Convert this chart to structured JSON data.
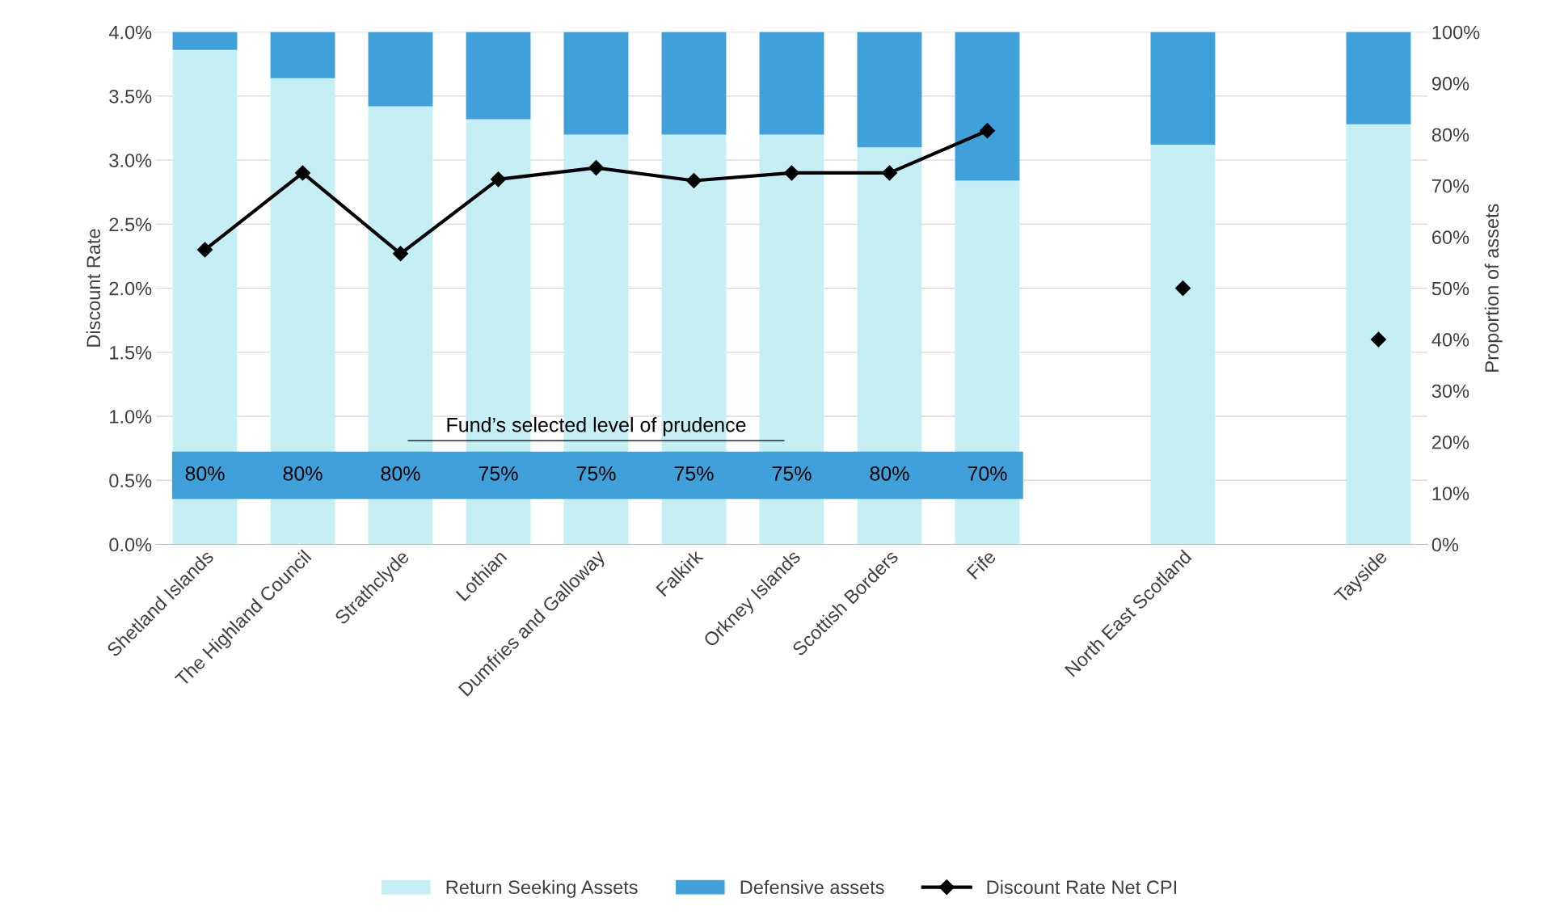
{
  "chart_data": {
    "type": "bar",
    "stacked": true,
    "categories": [
      "Shetland Islands",
      "The Highland Council",
      "Strathclyde",
      "Lothian",
      "Dumfries and Galloway",
      "Falkirk",
      "Orkney Islands",
      "Scottish Borders",
      "Fife",
      null,
      "North East Scotland",
      null,
      "Tayside"
    ],
    "series": [
      {
        "name": "Return Seeking Assets",
        "axis": "y2",
        "color": "#c5eef5",
        "values": [
          96.5,
          91,
          85.5,
          83,
          80,
          80,
          80,
          77.5,
          71,
          null,
          78,
          null,
          82
        ]
      },
      {
        "name": "Defensive assets",
        "axis": "y2",
        "color": "#40a0da",
        "values": [
          3.5,
          9,
          14.5,
          17,
          20,
          20,
          20,
          22.5,
          29,
          null,
          22,
          null,
          18
        ]
      },
      {
        "name": "Discount Rate Net CPI",
        "type": "line",
        "axis": "y",
        "color": "#000000",
        "marker": "diamond",
        "line_style": "solid",
        "values": [
          2.3,
          2.9,
          2.27,
          2.85,
          2.94,
          2.84,
          2.9,
          2.9,
          3.23,
          null,
          2.0,
          null,
          1.6
        ]
      }
    ],
    "ylabel": "Discount Rate",
    "y2label": "Proportion of assets",
    "ylim": [
      0,
      4
    ],
    "yticks": [
      {
        "value": 0,
        "label": "0.0%"
      },
      {
        "value": 0.5,
        "label": "0.5%"
      },
      {
        "value": 1,
        "label": "1.0%"
      },
      {
        "value": 1.5,
        "label": "1.5%"
      },
      {
        "value": 2,
        "label": "2.0%"
      },
      {
        "value": 2.5,
        "label": "2.5%"
      },
      {
        "value": 3,
        "label": "3.0%"
      },
      {
        "value": 3.5,
        "label": "3.5%"
      },
      {
        "value": 4,
        "label": "4.0%"
      }
    ],
    "y2lim": [
      0,
      100
    ],
    "y2ticks": [
      {
        "value": 0,
        "label": "0%"
      },
      {
        "value": 10,
        "label": "10%"
      },
      {
        "value": 20,
        "label": "20%"
      },
      {
        "value": 30,
        "label": "30%"
      },
      {
        "value": 40,
        "label": "40%"
      },
      {
        "value": 50,
        "label": "50%"
      },
      {
        "value": 60,
        "label": "60%"
      },
      {
        "value": 70,
        "label": "70%"
      },
      {
        "value": 80,
        "label": "80%"
      },
      {
        "value": 90,
        "label": "90%"
      },
      {
        "value": 100,
        "label": "100%"
      }
    ],
    "grid": "y",
    "legend": "bottom",
    "annotations": [
      "Fund’s selected level of prudence",
      "80%",
      "80%",
      "80%",
      "75%",
      "75%",
      "75%",
      "75%",
      "80%",
      "70%"
    ]
  }
}
